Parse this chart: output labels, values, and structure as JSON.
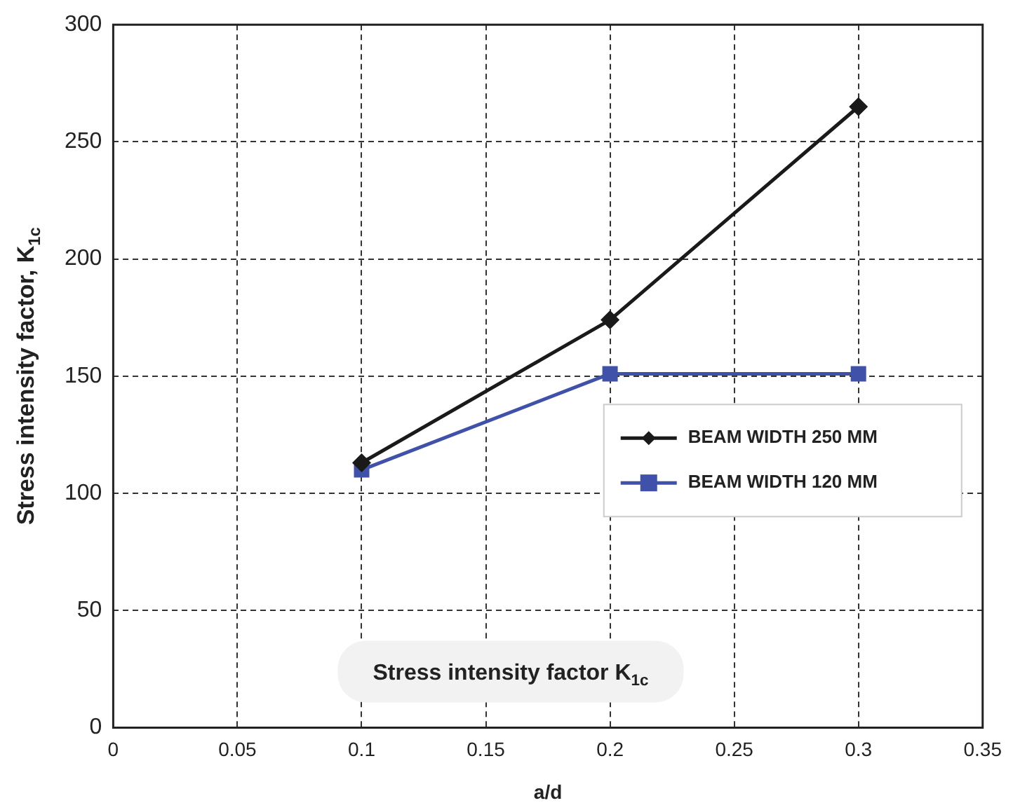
{
  "chart_data": {
    "type": "line",
    "xlabel": "a/d",
    "ylabel": "Stress intensity factor, K$_{1c}$",
    "x": [
      0.1,
      0.2,
      0.3
    ],
    "series": [
      {
        "name": "BEAM WIDTH 250 MM",
        "color": "#1a1a1a",
        "values": [
          113,
          174,
          265
        ],
        "marker": "diamond"
      },
      {
        "name": "BEAM WIDTH 120 MM",
        "color": "#3f51a8",
        "values": [
          110,
          151,
          151
        ],
        "marker": "square"
      }
    ],
    "xlim": [
      0,
      0.35
    ],
    "xticks": [
      0,
      0.05,
      0.1,
      0.15,
      0.2,
      0.25,
      0.3,
      0.35
    ],
    "ylim": [
      0,
      300
    ],
    "yticks": [
      0,
      50,
      100,
      150,
      200,
      250,
      300
    ],
    "grid": true,
    "legend": "right",
    "line_style": "solid",
    "annotations": [
      "Stress intensity factor K$_{1c}$"
    ]
  }
}
